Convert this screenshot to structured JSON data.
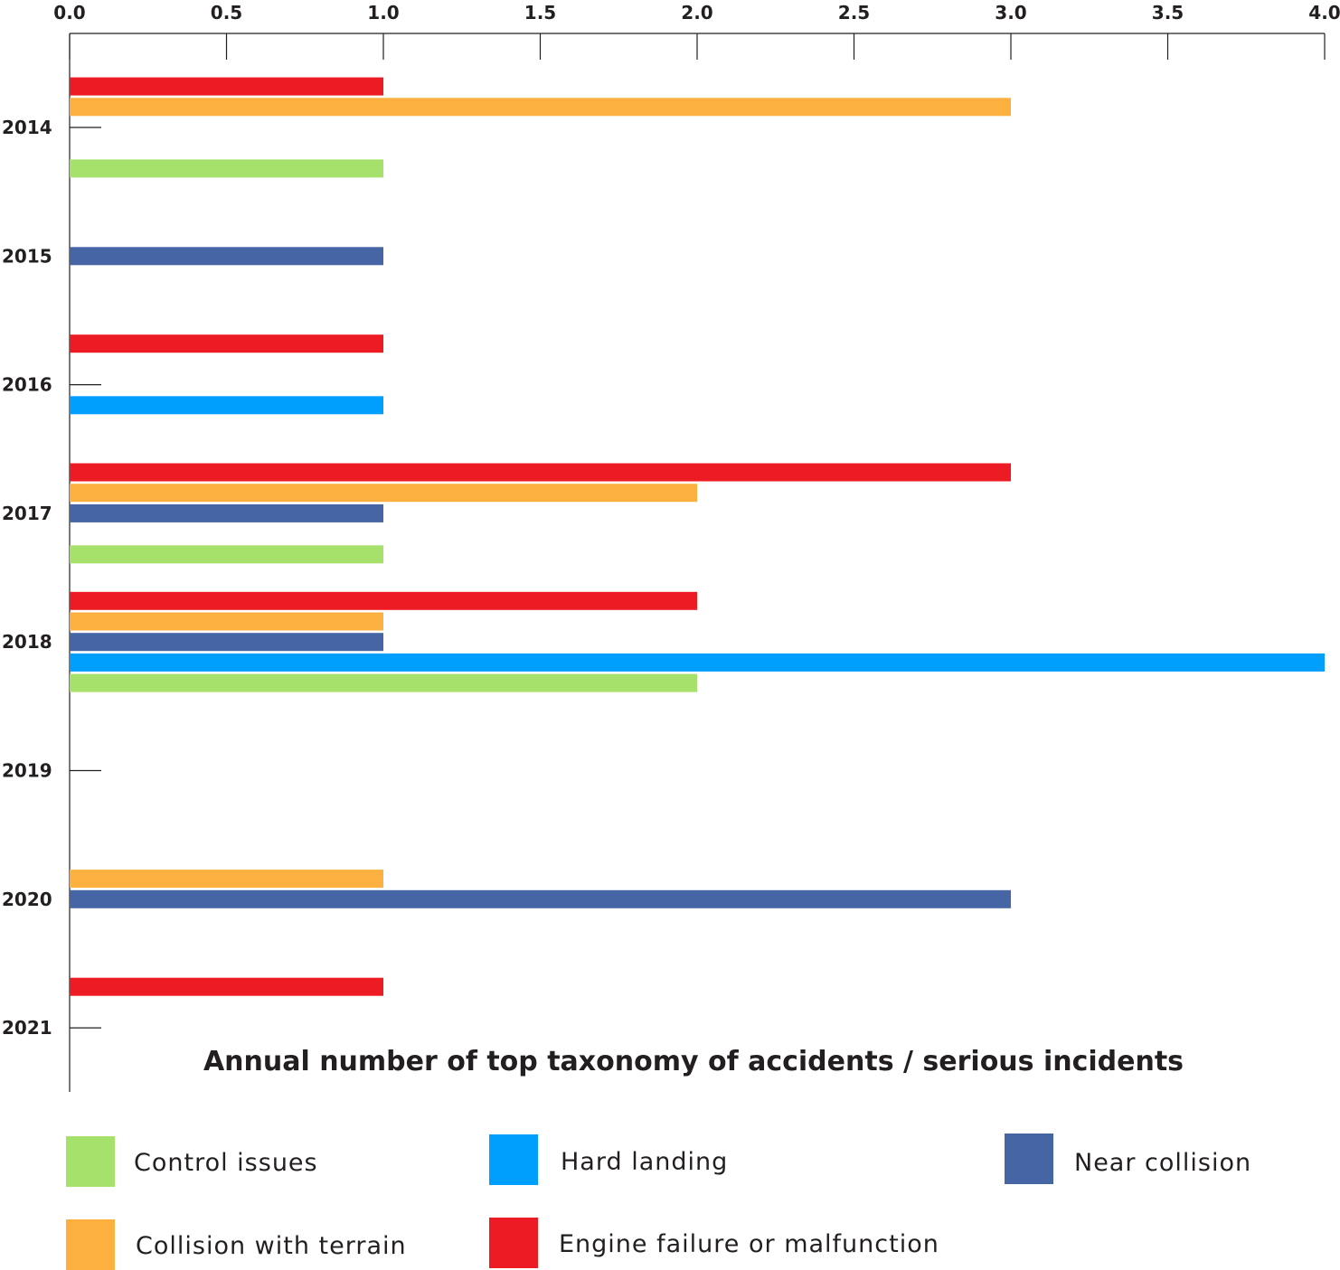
{
  "chart_data": {
    "type": "bar",
    "orientation": "horizontal",
    "title": "Annual number of top taxonomy of accidents / serious incidents",
    "xlabel": "",
    "ylabel": "",
    "xlim": [
      0,
      4
    ],
    "x_ticks": [
      "0.0",
      "0.5",
      "1.0",
      "1.5",
      "2.0",
      "2.5",
      "3.0",
      "3.5",
      "4.0"
    ],
    "categories": [
      "2014",
      "2015",
      "2016",
      "2017",
      "2018",
      "2019",
      "2020",
      "2021"
    ],
    "series": [
      {
        "name": "Engine failure or malfunction",
        "color": "#ed1c24",
        "values": [
          1,
          0,
          1,
          3,
          2,
          0,
          0,
          1
        ]
      },
      {
        "name": "Collision with terrain",
        "color": "#fbb040",
        "values": [
          3,
          0,
          0,
          2,
          1,
          0,
          1,
          0
        ]
      },
      {
        "name": "Near collision",
        "color": "#4565a5",
        "values": [
          0,
          1,
          0,
          1,
          1,
          0,
          3,
          0
        ]
      },
      {
        "name": "Hard landing",
        "color": "#009ffe",
        "values": [
          0,
          0,
          1,
          0,
          4,
          0,
          0,
          0
        ]
      },
      {
        "name": "Control issues",
        "color": "#a6e26b",
        "values": [
          1,
          0,
          0,
          1,
          2,
          0,
          0,
          0
        ]
      }
    ],
    "legend": {
      "placement": "bottom",
      "items": [
        {
          "label": "Control issues",
          "color": "#a6e26b"
        },
        {
          "label": "Hard landing",
          "color": "#009ffe"
        },
        {
          "label": "Near collision",
          "color": "#4565a5"
        },
        {
          "label": "Collision with terrain",
          "color": "#fbb040"
        },
        {
          "label": "Engine failure or malfunction",
          "color": "#ed1c24"
        }
      ]
    },
    "grid": false
  }
}
